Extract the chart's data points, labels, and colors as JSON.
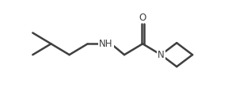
{
  "bg_color": "#ffffff",
  "line_color": "#404040",
  "line_width": 1.8,
  "text_color": "#404040",
  "font_size": 8.5,
  "figsize": [
    3.12,
    1.2
  ],
  "dpi": 100,
  "xlim": [
    0,
    9.5
  ],
  "ylim": [
    0,
    3.5
  ]
}
